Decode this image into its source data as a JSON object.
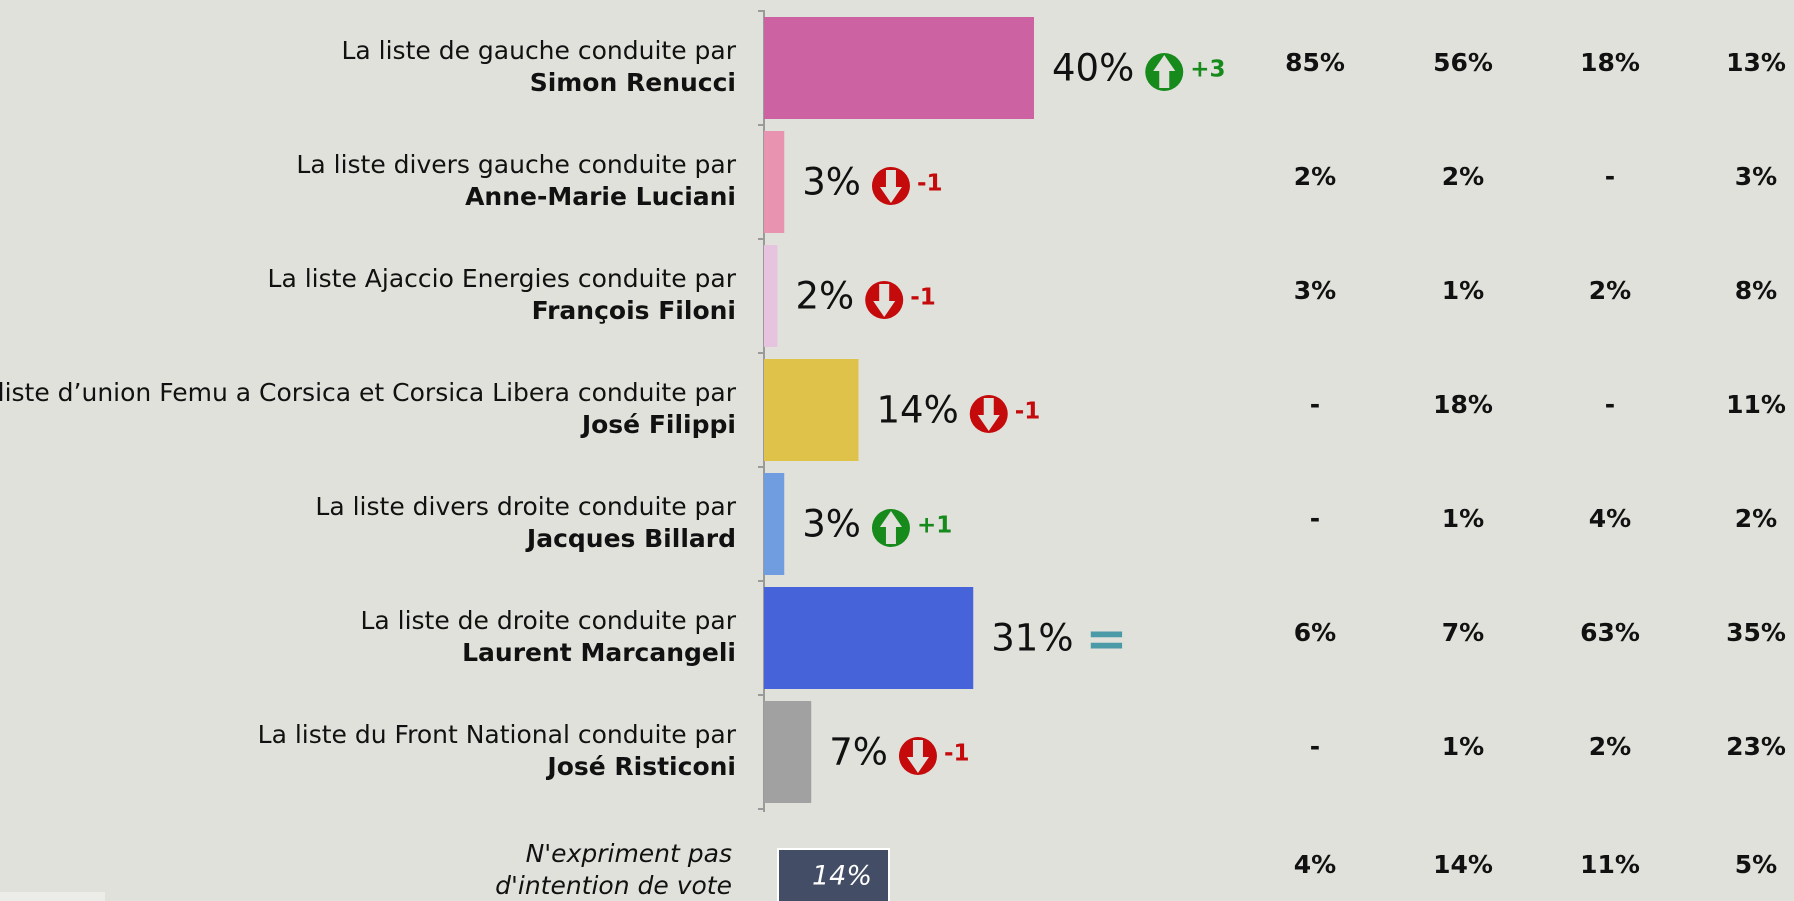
{
  "chart_data": {
    "type": "bar",
    "category_prefixes": [
      "La liste de gauche conduite par",
      "La liste divers gauche conduite par",
      "La liste Ajaccio Energies conduite par",
      "La liste d’union Femu a Corsica et Corsica Libera conduite par",
      "La liste divers droite conduite par",
      "La liste de droite conduite par",
      "La liste du Front National conduite par"
    ],
    "categories": [
      "Simon Renucci",
      "Anne-Marie Luciani",
      "François Filoni",
      "José Filippi",
      "Jacques Billard",
      "Laurent Marcangeli",
      "José Risticoni"
    ],
    "values": [
      40,
      3,
      2,
      14,
      3,
      31,
      7
    ],
    "value_labels": [
      "40%",
      "3%",
      "2%",
      "14%",
      "3%",
      "31%",
      "7%"
    ],
    "colors": [
      "#cc62a2",
      "#e894b0",
      "#e6c3df",
      "#dfc24a",
      "#709ce0",
      "#4663d9",
      "#a1a1a1"
    ],
    "xlim": [
      0,
      100
    ],
    "changes": [
      "+3",
      "-1",
      "-1",
      "-1",
      "+1",
      "=",
      "-1"
    ],
    "trends": [
      "up",
      "down",
      "down",
      "down",
      "up",
      "equal",
      "down"
    ],
    "breakdown": [
      [
        "85%",
        "56%",
        "18%",
        "13%"
      ],
      [
        "2%",
        "2%",
        "-",
        "3%"
      ],
      [
        "3%",
        "1%",
        "2%",
        "8%"
      ],
      [
        "-",
        "18%",
        "-",
        "11%"
      ],
      [
        "-",
        "1%",
        "4%",
        "2%"
      ],
      [
        "6%",
        "7%",
        "63%",
        "35%"
      ],
      [
        "-",
        "1%",
        "2%",
        "23%"
      ],
      [
        "4%",
        "14%",
        "11%",
        "5%"
      ]
    ],
    "no_opinion": {
      "label": [
        "N'expriment pas",
        "d'intention de vote"
      ],
      "value_label": "14%"
    }
  }
}
